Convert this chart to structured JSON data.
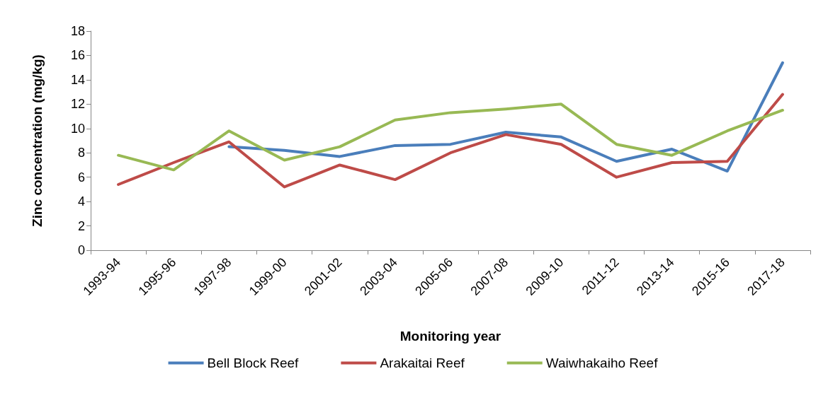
{
  "chart_data": {
    "type": "line",
    "xlabel": "Monitoring year",
    "ylabel": "Zinc concentration (mg/kg)",
    "categories": [
      "1993-94",
      "1995-96",
      "1997-98",
      "1999-00",
      "2001-02",
      "2003-04",
      "2005-06",
      "2007-08",
      "2009-10",
      "2011-12",
      "2013-14",
      "2015-16",
      "2017-18"
    ],
    "series": [
      {
        "name": "Bell Block Reef",
        "color": "#4a7ebb",
        "values": [
          null,
          null,
          8.5,
          8.2,
          7.7,
          8.6,
          8.7,
          9.7,
          9.3,
          7.3,
          8.3,
          6.5,
          15.4
        ]
      },
      {
        "name": "Arakaitai Reef",
        "color": "#be4b48",
        "values": [
          5.4,
          7.2,
          8.9,
          5.2,
          7.0,
          5.8,
          8.0,
          9.5,
          8.7,
          6.0,
          7.2,
          7.3,
          12.8
        ]
      },
      {
        "name": "Waiwhakaiho Reef",
        "color": "#98b954",
        "values": [
          7.8,
          6.6,
          9.8,
          7.4,
          8.5,
          10.7,
          11.3,
          11.6,
          12.0,
          8.7,
          7.8,
          9.8,
          11.5
        ]
      }
    ],
    "ylim": [
      0,
      18
    ],
    "yticks": [
      0,
      2,
      4,
      6,
      8,
      10,
      12,
      14,
      16,
      18
    ],
    "grid": false,
    "legend": "bottom",
    "marker": "none",
    "line_style": "solid"
  }
}
